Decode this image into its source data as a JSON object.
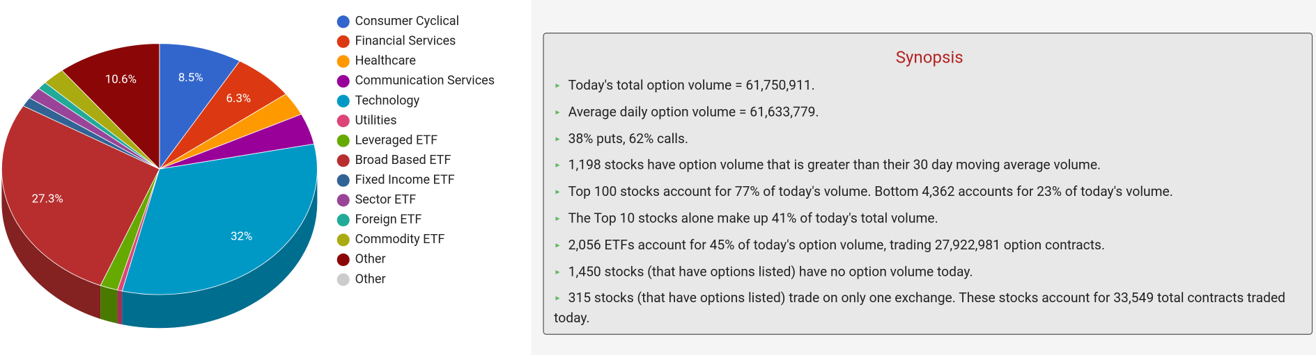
{
  "chart_data": {
    "type": "pie",
    "categories": [
      "Consumer Cyclical",
      "Financial Services",
      "Healthcare",
      "Communication Services",
      "Technology",
      "Utilities",
      "Leveraged ETF",
      "Broad Based ETF",
      "Fixed Income ETF",
      "Sector ETF",
      "Foreign ETF",
      "Commodity ETF",
      "Other",
      "Other"
    ],
    "values": [
      8.5,
      6.3,
      3.0,
      4.0,
      32,
      0.5,
      1.8,
      27.3,
      1.2,
      1.5,
      1.0,
      2.3,
      10.6,
      0
    ],
    "value_labels": [
      "8.5%",
      "6.3%",
      null,
      null,
      "32%",
      null,
      null,
      "27.3%",
      null,
      null,
      null,
      null,
      "10.6%",
      null
    ],
    "colors": [
      "#3366cc",
      "#dc3912",
      "#ff9900",
      "#990099",
      "#0099c6",
      "#dd4477",
      "#66aa00",
      "#b82e2e",
      "#316395",
      "#994499",
      "#22aa99",
      "#aaaa11",
      "#8b0707",
      "#cccccc"
    ],
    "legend": "right"
  },
  "synopsis": {
    "title": "Synopsis",
    "items": [
      "Today's total option volume = 61,750,911.",
      "Average daily option volume = 61,633,779.",
      "38% puts, 62% calls.",
      "1,198 stocks have option volume that is greater than their 30 day moving average volume.",
      "Top 100 stocks account for 77% of today's volume. Bottom 4,362 accounts for 23% of today's volume.",
      "The Top 10 stocks alone make up 41% of today's total volume.",
      "2,056 ETFs account for 45% of today's option volume, trading 27,922,981 option contracts.",
      "1,450 stocks (that have options listed) have no option volume today.",
      "315 stocks (that have options listed) trade on only one exchange. These stocks account for 33,549 total contracts traded today."
    ]
  }
}
